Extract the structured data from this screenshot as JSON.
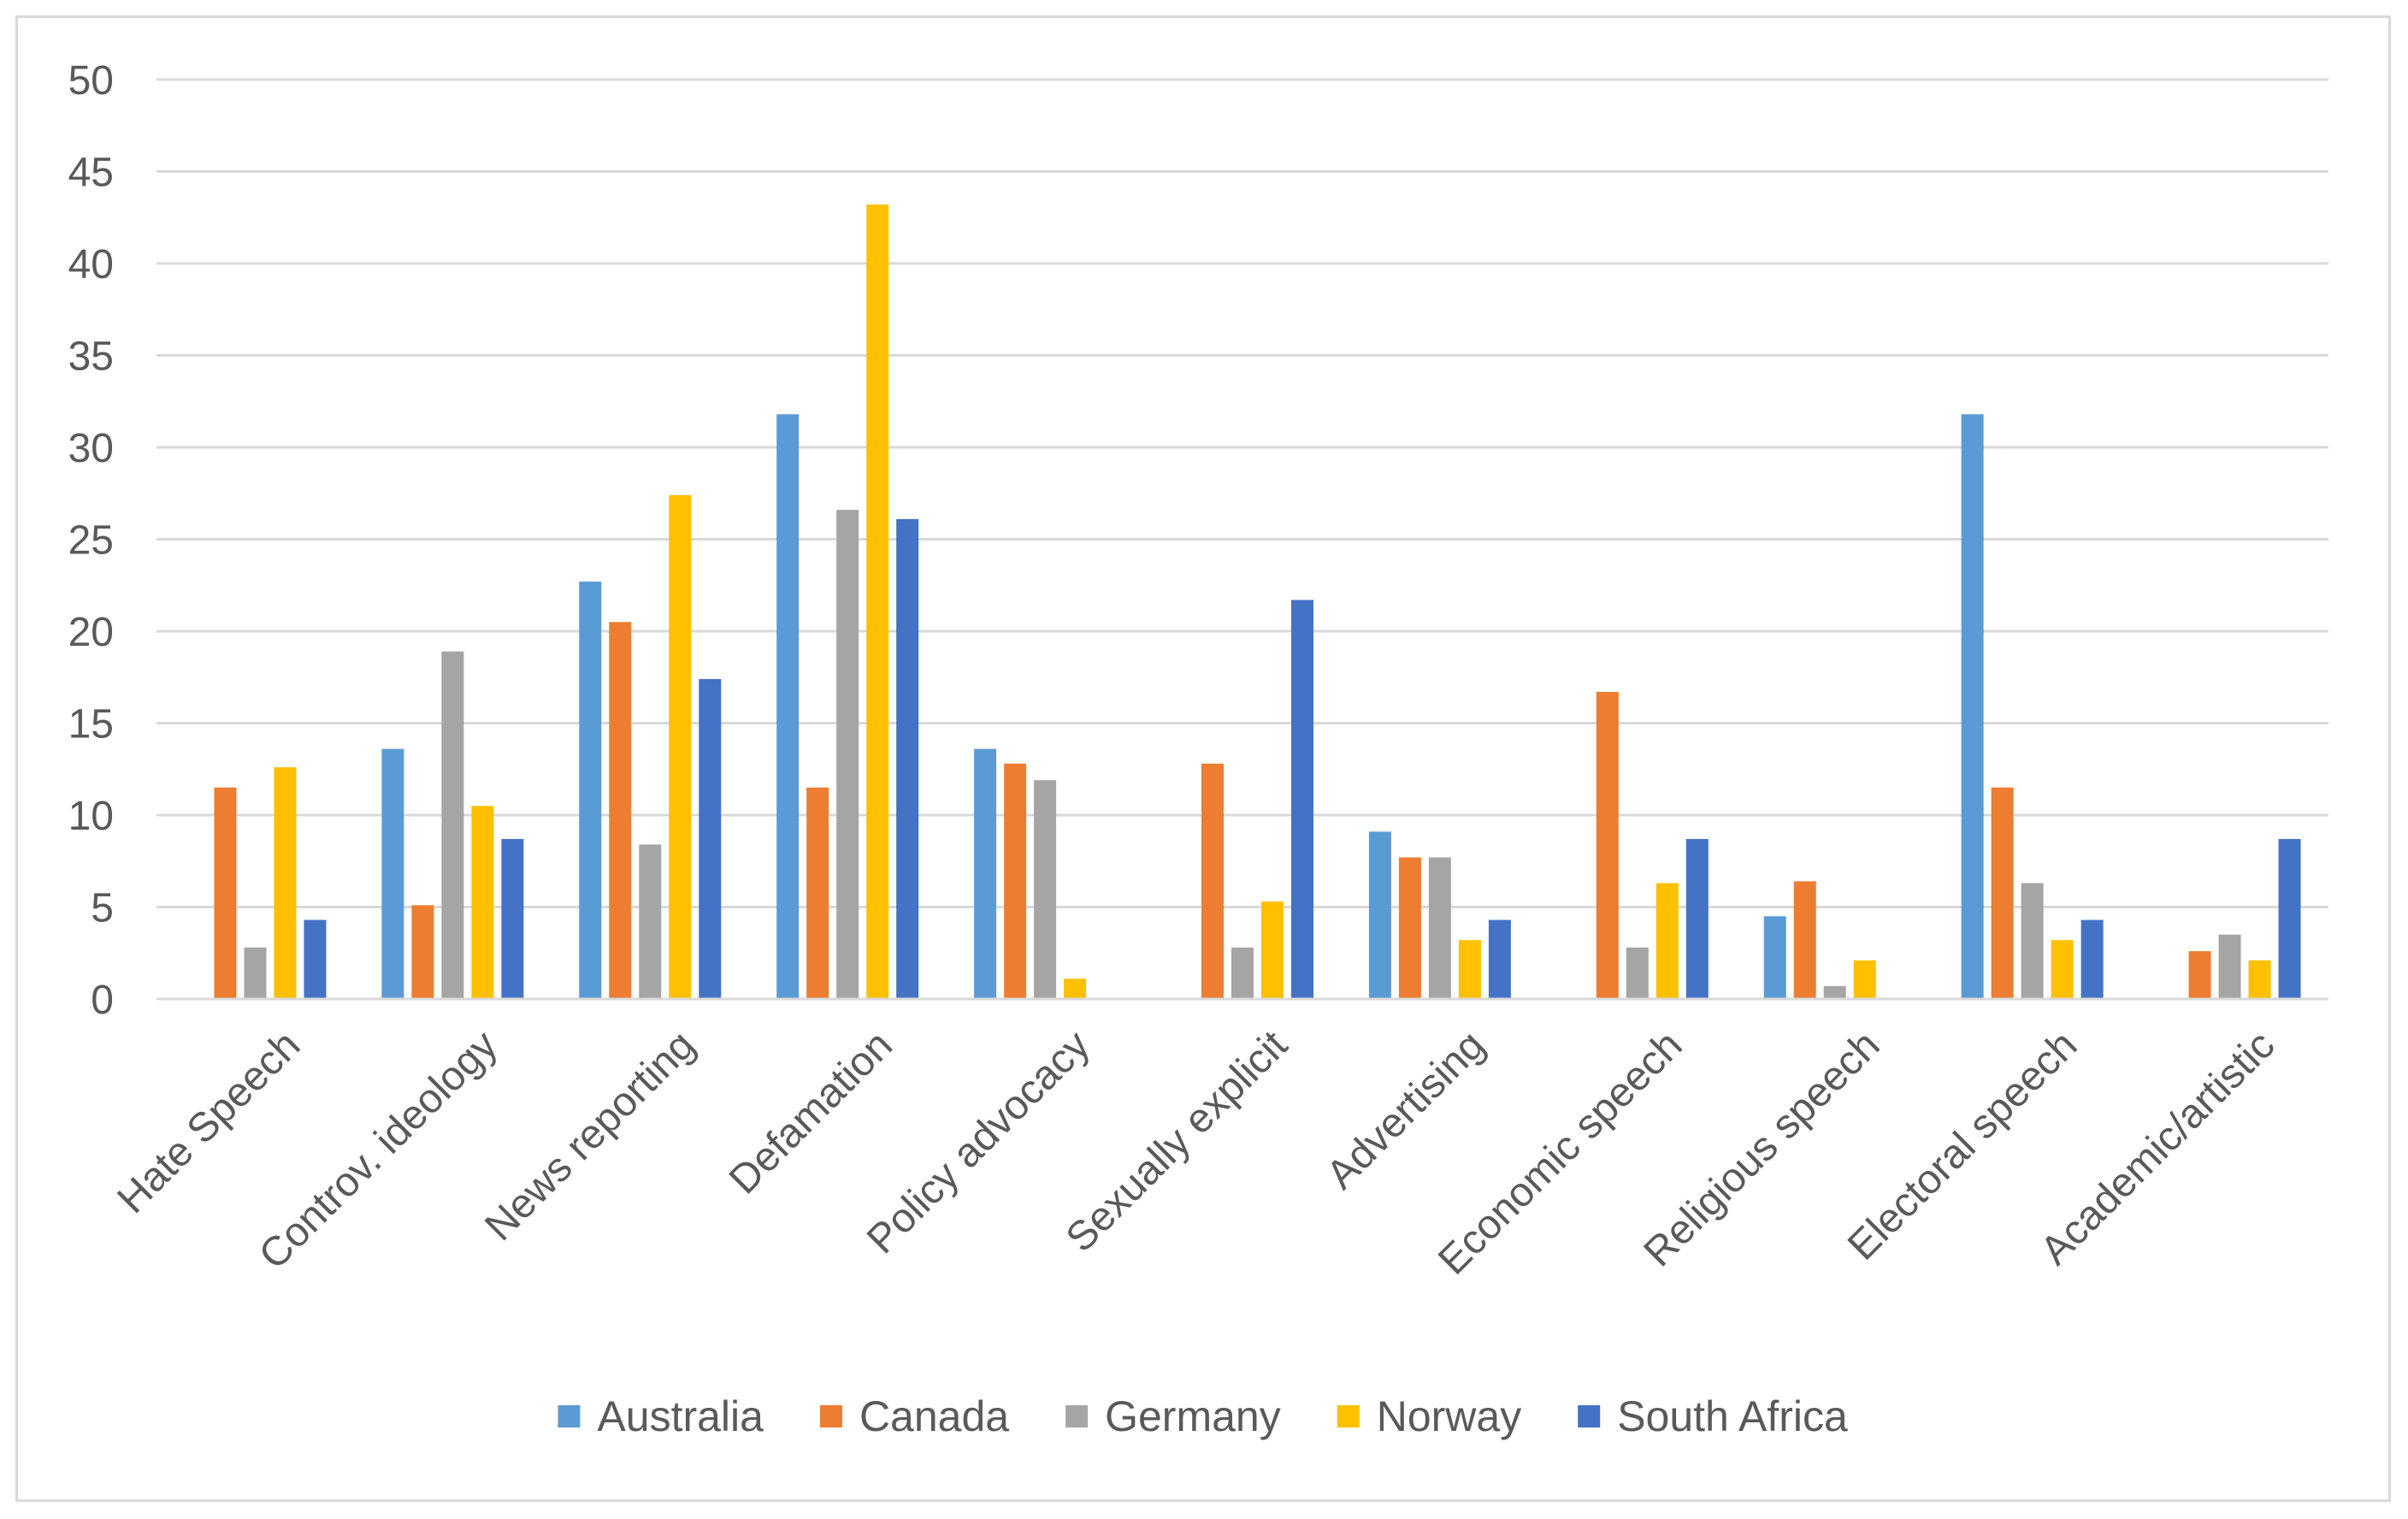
{
  "chart_data": {
    "type": "bar",
    "categories": [
      "Hate Speech",
      "Controv. ideology",
      "News reporting",
      "Defamation",
      "Policy advocacy",
      "Sexually explicit",
      "Advertising",
      "Economic speech",
      "Religious speech",
      "Electoral speech",
      "Academic/artistic"
    ],
    "series": [
      {
        "name": "Australia",
        "color": "#5b9bd5",
        "values": [
          0,
          13.6,
          22.7,
          31.8,
          13.6,
          0,
          9.1,
          0,
          4.5,
          31.8,
          0
        ]
      },
      {
        "name": "Canada",
        "color": "#ed7d31",
        "values": [
          11.5,
          5.1,
          20.5,
          11.5,
          12.8,
          12.8,
          7.7,
          16.7,
          6.4,
          11.5,
          2.6
        ]
      },
      {
        "name": "Germany",
        "color": "#a5a5a5",
        "values": [
          2.8,
          18.9,
          8.4,
          26.6,
          11.9,
          2.8,
          7.7,
          2.8,
          0.7,
          6.3,
          3.5
        ]
      },
      {
        "name": "Norway",
        "color": "#ffc000",
        "values": [
          12.6,
          10.5,
          27.4,
          43.2,
          1.1,
          5.3,
          3.2,
          6.3,
          2.1,
          3.2,
          2.1
        ]
      },
      {
        "name": "South Africa",
        "color": "#4472c4",
        "values": [
          4.3,
          8.7,
          17.4,
          26.1,
          0,
          21.7,
          4.3,
          8.7,
          0,
          4.3,
          8.7
        ]
      }
    ],
    "yticks": [
      "0",
      "5",
      "10",
      "15",
      "20",
      "25",
      "30",
      "35",
      "40",
      "45",
      "50"
    ],
    "ylim": [
      0,
      50
    ],
    "grid": true,
    "legend_position": "bottom"
  },
  "colors": {
    "gridline": "#d9d9d9",
    "text": "#595959",
    "border": "#d9d9d9"
  }
}
